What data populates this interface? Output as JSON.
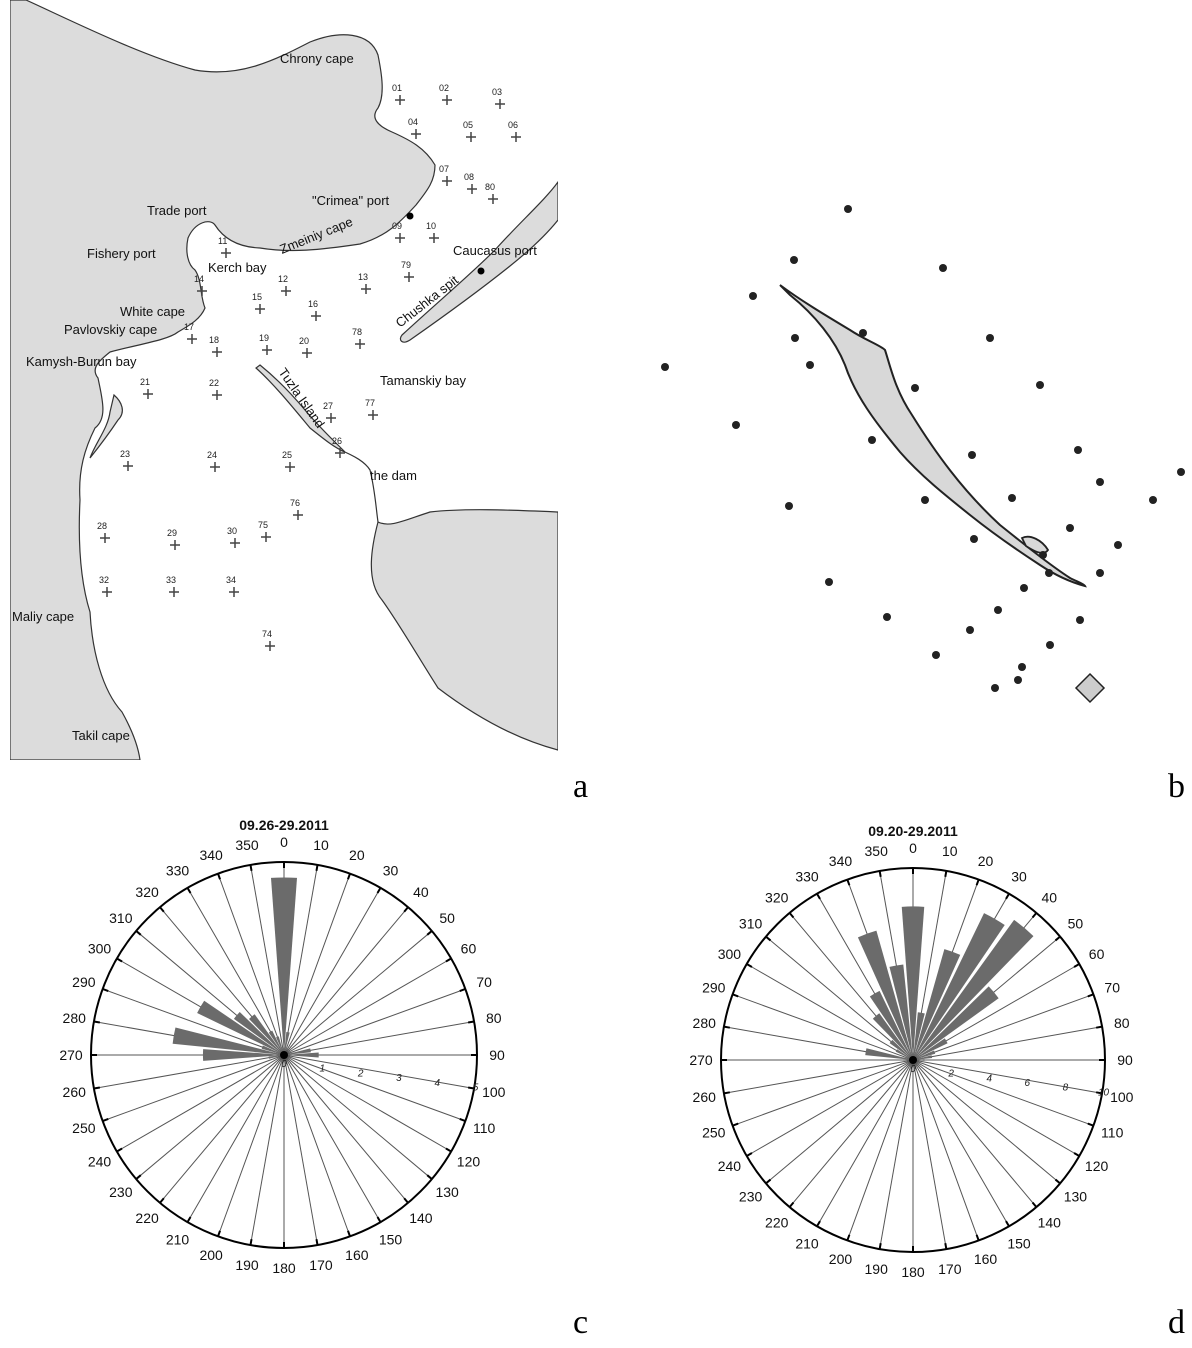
{
  "panel_letters": [
    "a",
    "b",
    "c",
    "d"
  ],
  "map_a": {
    "places": [
      {
        "id": "chrony-cape",
        "text": "Chrony cape"
      },
      {
        "id": "trade-port",
        "text": "Trade port"
      },
      {
        "id": "crimea-port",
        "text": "\"Crimea\" port"
      },
      {
        "id": "zmeiniy-cape",
        "text": "Zmeiniy cape"
      },
      {
        "id": "fishery-port",
        "text": "Fishery port"
      },
      {
        "id": "kerch-bay",
        "text": "Kerch bay"
      },
      {
        "id": "caucasus-port",
        "text": "Caucasus port"
      },
      {
        "id": "chushka-spit",
        "text": "Chushka spit"
      },
      {
        "id": "white-cape",
        "text": "White cape"
      },
      {
        "id": "pavlovskiy-cape",
        "text": "Pavlovskiy cape"
      },
      {
        "id": "kamysh-burun-bay",
        "text": "Kamysh-Burun bay"
      },
      {
        "id": "tamanskiy-bay",
        "text": "Tamanskiy bay"
      },
      {
        "id": "tuzla-island",
        "text": "Tuzla Island"
      },
      {
        "id": "the-dam",
        "text": "the dam"
      },
      {
        "id": "maliy-cape",
        "text": "Maliy cape"
      },
      {
        "id": "takil-cape",
        "text": "Takil cape"
      }
    ],
    "stations": [
      "01",
      "02",
      "03",
      "04",
      "05",
      "06",
      "07",
      "08",
      "80",
      "09",
      "10",
      "11",
      "79",
      "12",
      "13",
      "14",
      "15",
      "16",
      "78",
      "17",
      "18",
      "19",
      "20",
      "21",
      "22",
      "27",
      "77",
      "26",
      "23",
      "24",
      "25",
      "76",
      "28",
      "29",
      "30",
      "75",
      "32",
      "33",
      "34",
      "74"
    ]
  },
  "map_b": {
    "stations": [
      "st-1",
      "st-2",
      "st-3",
      "st-4",
      "st-5",
      "st-6",
      "st-7",
      "st-8",
      "st-9",
      "st-10",
      "st-11",
      "st-12",
      "st-13",
      "st-14",
      "st-15",
      "st-16",
      "st-17",
      "st-18",
      "st-19",
      "st-20",
      "st-21",
      "st-22",
      "st-23",
      "st-24",
      "st-25",
      "st-26",
      "st-27",
      "st-28",
      "st-29",
      "st-30",
      "st-31",
      "st-32",
      "st-33",
      "st-34",
      "st-35",
      "st-36",
      "st-37",
      "st-38"
    ]
  },
  "chart_data": [
    {
      "type": "polar-bar",
      "title": "09.26-29.2011",
      "angle_ticks": [
        "0",
        "10",
        "20",
        "30",
        "40",
        "50",
        "60",
        "70",
        "80",
        "90",
        "100",
        "110",
        "120",
        "130",
        "140",
        "150",
        "160",
        "170",
        "180",
        "190",
        "200",
        "210",
        "220",
        "230",
        "240",
        "250",
        "260",
        "270",
        "280",
        "290",
        "300",
        "310",
        "320",
        "330",
        "340",
        "350"
      ],
      "radial_ticks": [
        "0",
        "1",
        "2",
        "3",
        "4",
        "5"
      ],
      "rmax": 5,
      "bins": [
        {
          "angle": 0,
          "value": 4.6
        },
        {
          "angle": 10,
          "value": 0.6
        },
        {
          "angle": 20,
          "value": 0.2
        },
        {
          "angle": 80,
          "value": 0.7
        },
        {
          "angle": 90,
          "value": 0.9
        },
        {
          "angle": 100,
          "value": 0.1
        },
        {
          "angle": 260,
          "value": 0.4
        },
        {
          "angle": 270,
          "value": 2.1
        },
        {
          "angle": 280,
          "value": 2.9
        },
        {
          "angle": 290,
          "value": 0.6
        },
        {
          "angle": 300,
          "value": 2.5
        },
        {
          "angle": 310,
          "value": 1.6
        },
        {
          "angle": 320,
          "value": 1.3
        },
        {
          "angle": 330,
          "value": 0.7
        },
        {
          "angle": 340,
          "value": 0.5
        },
        {
          "angle": 350,
          "value": 0.2
        }
      ]
    },
    {
      "type": "polar-bar",
      "title": "09.20-29.2011",
      "angle_ticks": [
        "0",
        "10",
        "20",
        "30",
        "40",
        "50",
        "60",
        "70",
        "80",
        "90",
        "100",
        "110",
        "120",
        "130",
        "140",
        "150",
        "160",
        "170",
        "180",
        "190",
        "200",
        "210",
        "220",
        "230",
        "240",
        "250",
        "260",
        "270",
        "280",
        "290",
        "300",
        "310",
        "320",
        "330",
        "340",
        "350"
      ],
      "radial_ticks": [
        "0",
        "2",
        "4",
        "6",
        "8",
        "10"
      ],
      "rmax": 10,
      "bins": [
        {
          "angle": 0,
          "value": 8.0
        },
        {
          "angle": 10,
          "value": 2.5
        },
        {
          "angle": 20,
          "value": 6.0
        },
        {
          "angle": 30,
          "value": 8.5
        },
        {
          "angle": 40,
          "value": 9.0
        },
        {
          "angle": 50,
          "value": 5.5
        },
        {
          "angle": 60,
          "value": 2.0
        },
        {
          "angle": 70,
          "value": 1.2
        },
        {
          "angle": 80,
          "value": 1.0
        },
        {
          "angle": 90,
          "value": 0.6
        },
        {
          "angle": 270,
          "value": 0.5
        },
        {
          "angle": 280,
          "value": 2.5
        },
        {
          "angle": 290,
          "value": 0.4
        },
        {
          "angle": 300,
          "value": 1.0
        },
        {
          "angle": 310,
          "value": 1.5
        },
        {
          "angle": 320,
          "value": 3.0
        },
        {
          "angle": 330,
          "value": 4.0
        },
        {
          "angle": 340,
          "value": 7.0
        },
        {
          "angle": 350,
          "value": 5.0
        }
      ]
    }
  ]
}
